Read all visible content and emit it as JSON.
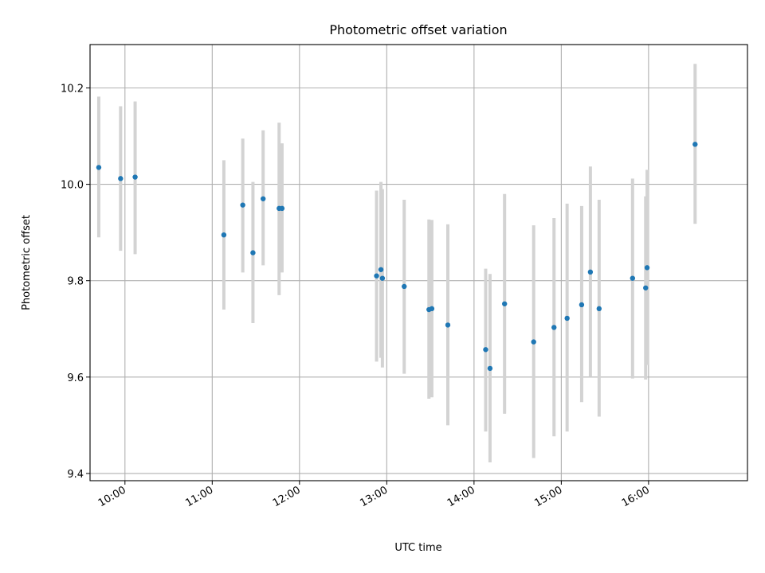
{
  "chart_data": {
    "type": "scatter",
    "title": "Photometric offset variation",
    "xlabel": "UTC time",
    "ylabel": "Photometric offset",
    "x_unit": "UTC time of day",
    "xlim": [
      "09:36",
      "17:08"
    ],
    "ylim": [
      9.385,
      10.29
    ],
    "x_ticks": [
      "10:00",
      "11:00",
      "12:00",
      "13:00",
      "14:00",
      "15:00",
      "16:00"
    ],
    "y_ticks": [
      "9.4",
      "9.6",
      "9.8",
      "10.0",
      "10.2"
    ],
    "grid": true,
    "series": [
      {
        "color": "#1f77b4",
        "errorbar_color": "#d3d3d3",
        "points": [
          {
            "x": "09:42",
            "y": 10.035,
            "ylo": 9.89,
            "yhi": 10.182
          },
          {
            "x": "09:57",
            "y": 10.012,
            "ylo": 9.862,
            "yhi": 10.162
          },
          {
            "x": "10:07",
            "y": 10.015,
            "ylo": 9.855,
            "yhi": 10.172
          },
          {
            "x": "11:08",
            "y": 9.895,
            "ylo": 9.74,
            "yhi": 10.05
          },
          {
            "x": "11:21",
            "y": 9.957,
            "ylo": 9.817,
            "yhi": 10.095
          },
          {
            "x": "11:28",
            "y": 9.858,
            "ylo": 9.712,
            "yhi": 10.005
          },
          {
            "x": "11:35",
            "y": 9.97,
            "ylo": 9.832,
            "yhi": 10.112
          },
          {
            "x": "11:46",
            "y": 9.95,
            "ylo": 9.77,
            "yhi": 10.128
          },
          {
            "x": "11:48",
            "y": 9.95,
            "ylo": 9.817,
            "yhi": 10.085
          },
          {
            "x": "12:53",
            "y": 9.81,
            "ylo": 9.632,
            "yhi": 9.987
          },
          {
            "x": "12:56",
            "y": 9.823,
            "ylo": 9.64,
            "yhi": 10.005
          },
          {
            "x": "12:57",
            "y": 9.805,
            "ylo": 9.62,
            "yhi": 9.99
          },
          {
            "x": "13:12",
            "y": 9.788,
            "ylo": 9.607,
            "yhi": 9.968
          },
          {
            "x": "13:29",
            "y": 9.74,
            "ylo": 9.555,
            "yhi": 9.927
          },
          {
            "x": "13:31",
            "y": 9.742,
            "ylo": 9.558,
            "yhi": 9.926
          },
          {
            "x": "13:42",
            "y": 9.708,
            "ylo": 9.5,
            "yhi": 9.917
          },
          {
            "x": "14:08",
            "y": 9.657,
            "ylo": 9.487,
            "yhi": 9.825
          },
          {
            "x": "14:11",
            "y": 9.618,
            "ylo": 9.423,
            "yhi": 9.814
          },
          {
            "x": "14:21",
            "y": 9.752,
            "ylo": 9.524,
            "yhi": 9.98
          },
          {
            "x": "14:41",
            "y": 9.673,
            "ylo": 9.432,
            "yhi": 9.915
          },
          {
            "x": "14:55",
            "y": 9.703,
            "ylo": 9.477,
            "yhi": 9.93
          },
          {
            "x": "15:04",
            "y": 9.722,
            "ylo": 9.487,
            "yhi": 9.96
          },
          {
            "x": "15:14",
            "y": 9.75,
            "ylo": 9.548,
            "yhi": 9.955
          },
          {
            "x": "15:20",
            "y": 9.818,
            "ylo": 9.6,
            "yhi": 10.037
          },
          {
            "x": "15:26",
            "y": 9.742,
            "ylo": 9.518,
            "yhi": 9.968
          },
          {
            "x": "15:49",
            "y": 9.805,
            "ylo": 9.597,
            "yhi": 10.012
          },
          {
            "x": "15:58",
            "y": 9.785,
            "ylo": 9.595,
            "yhi": 9.975
          },
          {
            "x": "15:59",
            "y": 9.827,
            "ylo": 9.625,
            "yhi": 10.03
          },
          {
            "x": "16:32",
            "y": 10.083,
            "ylo": 9.918,
            "yhi": 10.25
          }
        ]
      }
    ]
  }
}
